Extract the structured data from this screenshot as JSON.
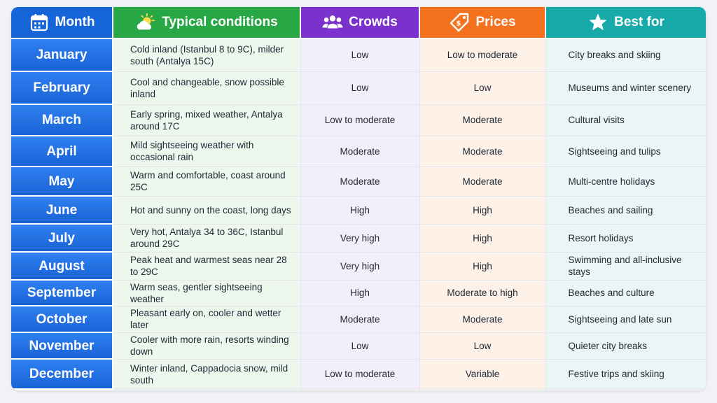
{
  "header": {
    "month": "Month",
    "conditions": "Typical conditions",
    "crowds": "Crowds",
    "prices": "Prices",
    "best_for": "Best for"
  },
  "header_icons": {
    "month": "calendar-icon",
    "conditions": "sun-cloud-icon",
    "crowds": "people-group-icon",
    "prices": "price-tag-icon",
    "best_for": "star-icon"
  },
  "colors": {
    "month": "#1565d8",
    "conditions": "#28a745",
    "crowds": "#7b32cc",
    "prices": "#f4711d",
    "best_for": "#17aaa8"
  },
  "rows": [
    {
      "month": "January",
      "conditions": "Cold inland (Istanbul 8 to 9C), milder south (Antalya 15C)",
      "crowds": "Low",
      "prices": "Low to moderate",
      "best": "City breaks and skiing"
    },
    {
      "month": "February",
      "conditions": "Cool and changeable, snow possible inland",
      "crowds": "Low",
      "prices": "Low",
      "best": "Museums and winter scenery"
    },
    {
      "month": "March",
      "conditions": "Early spring, mixed weather, Antalya around 17C",
      "crowds": "Low to moderate",
      "prices": "Moderate",
      "best": "Cultural visits"
    },
    {
      "month": "April",
      "conditions": "Mild sightseeing weather with occasional rain",
      "crowds": "Moderate",
      "prices": "Moderate",
      "best": "Sightseeing and tulips"
    },
    {
      "month": "May",
      "conditions": "Warm and comfortable, coast around 25C",
      "crowds": "Moderate",
      "prices": "Moderate",
      "best": "Multi-centre holidays"
    },
    {
      "month": "June",
      "conditions": "Hot and sunny on the coast, long days",
      "crowds": "High",
      "prices": "High",
      "best": "Beaches and sailing"
    },
    {
      "month": "July",
      "conditions": "Very hot, Antalya 34 to 36C, Istanbul around 29C",
      "crowds": "Very high",
      "prices": "High",
      "best": "Resort holidays"
    },
    {
      "month": "August",
      "conditions": "Peak heat and warmest seas near 28 to 29C",
      "crowds": "Very high",
      "prices": "High",
      "best": "Swimming and all-inclusive stays"
    },
    {
      "month": "September",
      "conditions": "Warm seas, gentler sightseeing weather",
      "crowds": "High",
      "prices": "Moderate to high",
      "best": "Beaches and culture"
    },
    {
      "month": "October",
      "conditions": "Pleasant early on, cooler and wetter later",
      "crowds": "Moderate",
      "prices": "Moderate",
      "best": "Sightseeing and late sun"
    },
    {
      "month": "November",
      "conditions": "Cooler with more rain, resorts winding down",
      "crowds": "Low",
      "prices": "Low",
      "best": "Quieter city breaks"
    },
    {
      "month": "December",
      "conditions": "Winter inland, Cappadocia snow, mild south",
      "crowds": "Low to moderate",
      "prices": "Variable",
      "best": "Festive trips and skiing"
    }
  ]
}
